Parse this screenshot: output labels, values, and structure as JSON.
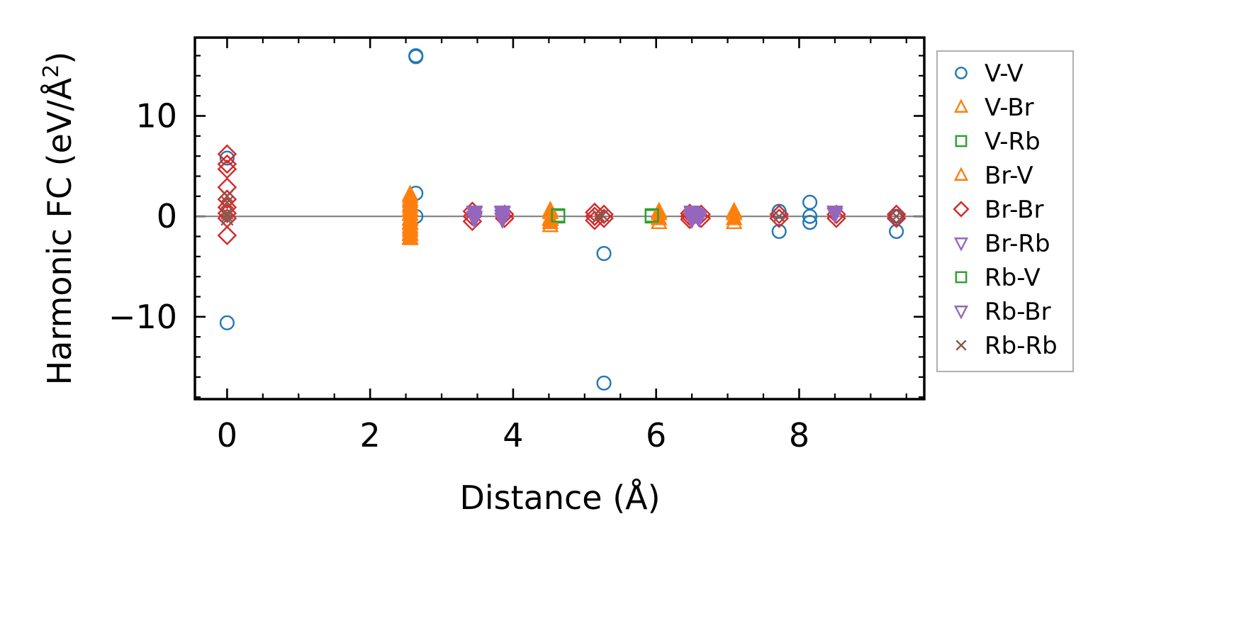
{
  "chart_data": {
    "type": "scatter",
    "xlabel": "Distance (Å)",
    "ylabel": "Harmonic FC (eV/Å",
    "ylabel_sup": "2",
    "ylabel_end": ")",
    "xlim": [
      -0.45,
      9.75
    ],
    "ylim": [
      -18.2,
      17.8
    ],
    "x_ticks": [
      0,
      2,
      4,
      6,
      8
    ],
    "x_tick_labels": [
      "0",
      "2",
      "4",
      "6",
      "8"
    ],
    "y_ticks": [
      10,
      0,
      -10
    ],
    "y_tick_labels": [
      "10",
      "0",
      "−10"
    ],
    "zero_line": true,
    "grid": false,
    "legend_position": "outside-right",
    "series": [
      {
        "name": "V-V",
        "color": "#1f77b4",
        "marker": "circle",
        "filled": false,
        "points": [
          [
            0,
            5.8
          ],
          [
            0,
            -10.6
          ],
          [
            2.64,
            15.9
          ],
          [
            2.64,
            16.0
          ],
          [
            2.64,
            2.3
          ],
          [
            2.64,
            0
          ],
          [
            5.27,
            -3.7
          ],
          [
            5.27,
            -16.6
          ],
          [
            7.72,
            0.5
          ],
          [
            7.72,
            -1.5
          ],
          [
            8.15,
            1.4
          ],
          [
            8.15,
            0
          ],
          [
            8.15,
            -0.6
          ],
          [
            9.36,
            -1.5
          ],
          [
            9.36,
            0
          ]
        ]
      },
      {
        "name": "V-Br",
        "color": "#ff7f0e",
        "marker": "triangle-up",
        "filled": false,
        "points": [
          [
            2.56,
            2.0
          ],
          [
            2.56,
            1.5
          ],
          [
            2.56,
            1.0
          ],
          [
            2.56,
            0.6
          ],
          [
            2.56,
            0.2
          ],
          [
            2.56,
            -0.2
          ],
          [
            2.56,
            -0.6
          ],
          [
            2.56,
            -1.0
          ],
          [
            2.56,
            -1.4
          ],
          [
            2.56,
            -1.8
          ],
          [
            2.56,
            -2.2
          ],
          [
            4.52,
            -0.9
          ],
          [
            4.52,
            0.4
          ],
          [
            4.52,
            -0.3
          ],
          [
            6.04,
            -0.6
          ],
          [
            6.04,
            0.3
          ],
          [
            7.09,
            -0.6
          ],
          [
            7.09,
            0.3
          ]
        ]
      },
      {
        "name": "V-Rb",
        "color": "#2ca02c",
        "marker": "square",
        "filled": false,
        "points": [
          [
            4.63,
            0
          ],
          [
            5.94,
            0
          ]
        ]
      },
      {
        "name": "Br-V",
        "color": "#ff7f0e",
        "marker": "triangle-up",
        "filled": true,
        "points": [
          [
            2.56,
            2.2
          ],
          [
            2.56,
            1.7
          ],
          [
            2.56,
            1.2
          ],
          [
            2.56,
            0.7
          ],
          [
            2.56,
            0.3
          ],
          [
            2.56,
            -0.3
          ],
          [
            2.56,
            -0.7
          ],
          [
            2.56,
            -1.2
          ],
          [
            2.56,
            -1.7
          ],
          [
            2.56,
            -2.1
          ],
          [
            4.52,
            0.6
          ],
          [
            4.52,
            -0.2
          ],
          [
            4.52,
            -0.6
          ],
          [
            6.04,
            0.5
          ],
          [
            6.04,
            -0.2
          ],
          [
            7.09,
            0.5
          ],
          [
            7.09,
            -0.2
          ]
        ]
      },
      {
        "name": "Br-Br",
        "color": "#d62728",
        "marker": "diamond",
        "filled": false,
        "points": [
          [
            0,
            6.2
          ],
          [
            0,
            5.2
          ],
          [
            0,
            4.7
          ],
          [
            0,
            2.9
          ],
          [
            0,
            1.7
          ],
          [
            0,
            0.9
          ],
          [
            0,
            0.3
          ],
          [
            0,
            -0.2
          ],
          [
            0,
            -1.9
          ],
          [
            3.43,
            0.5
          ],
          [
            3.43,
            0
          ],
          [
            3.43,
            -0.5
          ],
          [
            3.88,
            0.2
          ],
          [
            3.88,
            -0.2
          ],
          [
            5.14,
            0.4
          ],
          [
            5.14,
            0
          ],
          [
            5.14,
            -0.4
          ],
          [
            5.27,
            0.2
          ],
          [
            5.27,
            -0.2
          ],
          [
            6.47,
            0.3
          ],
          [
            6.47,
            0
          ],
          [
            6.47,
            -0.3
          ],
          [
            6.63,
            0.2
          ],
          [
            6.63,
            -0.2
          ],
          [
            7.72,
            0.2
          ],
          [
            7.72,
            -0.2
          ],
          [
            8.52,
            0.2
          ],
          [
            8.52,
            -0.2
          ],
          [
            9.36,
            0.2
          ],
          [
            9.36,
            -0.2
          ]
        ]
      },
      {
        "name": "Br-Rb",
        "color": "#9467bd",
        "marker": "triangle-down",
        "filled": false,
        "points": [
          [
            3.46,
            0.3
          ],
          [
            3.46,
            -0.3
          ],
          [
            3.85,
            0.3
          ],
          [
            3.85,
            -0.3
          ],
          [
            6.5,
            0.3
          ],
          [
            6.5,
            -0.3
          ],
          [
            6.58,
            0
          ],
          [
            8.5,
            0.2
          ]
        ]
      },
      {
        "name": "Rb-V",
        "color": "#2ca02c",
        "marker": "square",
        "filled": false,
        "points": [
          [
            4.63,
            0.1
          ],
          [
            5.94,
            0.1
          ]
        ]
      },
      {
        "name": "Rb-Br",
        "color": "#9467bd",
        "marker": "triangle-down",
        "filled": true,
        "points": [
          [
            3.46,
            0.4
          ],
          [
            3.46,
            -0.1
          ],
          [
            3.85,
            0.4
          ],
          [
            3.85,
            0
          ],
          [
            6.5,
            0.4
          ],
          [
            6.5,
            0
          ],
          [
            6.56,
            0.2
          ],
          [
            6.6,
            -0.2
          ],
          [
            8.5,
            0.4
          ]
        ]
      },
      {
        "name": "Rb-Rb",
        "color": "#8c564b",
        "marker": "x",
        "filled": false,
        "points": [
          [
            0,
            2.0
          ],
          [
            0,
            1.4
          ],
          [
            0,
            0.3
          ],
          [
            0,
            0
          ],
          [
            0,
            -0.3
          ],
          [
            5.2,
            0
          ],
          [
            5.25,
            0.1
          ],
          [
            7.72,
            0
          ],
          [
            9.36,
            0
          ]
        ]
      }
    ]
  }
}
